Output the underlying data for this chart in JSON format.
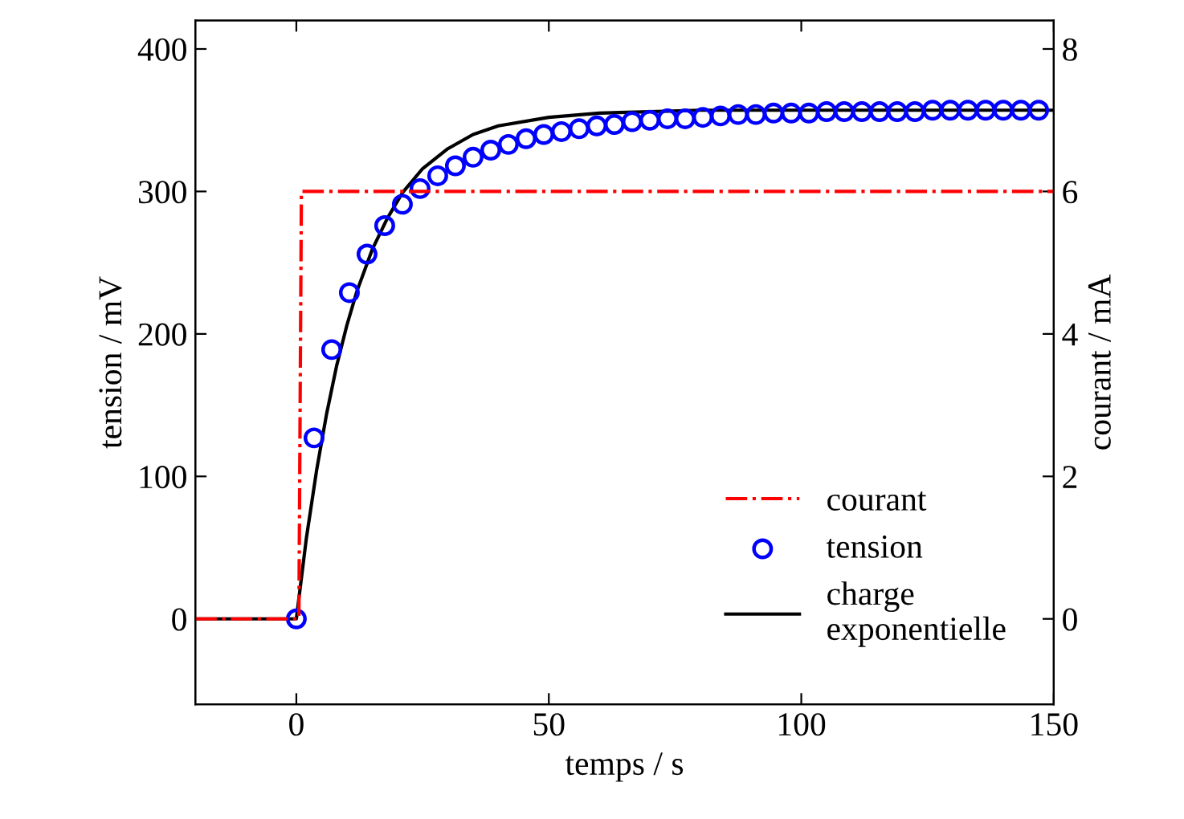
{
  "chart_data": {
    "type": "line",
    "xlabel": "temps / s",
    "ylabel": "tension / mV",
    "y2label": "courant / mA",
    "xlim": [
      -20,
      150
    ],
    "xticks": [
      0,
      50,
      100,
      150
    ],
    "ylim": [
      -60,
      420
    ],
    "yticks": [
      0,
      100,
      200,
      300,
      400
    ],
    "y2lim": [
      -1.2,
      8.4
    ],
    "y2ticks": [
      0,
      2,
      4,
      6,
      8
    ],
    "grid": false,
    "legend": "bottom right",
    "series": [
      {
        "name": "courant",
        "color": "#ff0000",
        "axis": "y2",
        "line_style": "dashdot",
        "marker": "none",
        "x": [
          -20,
          0.5,
          1,
          150
        ],
        "values": [
          0,
          0,
          6,
          6
        ]
      },
      {
        "name": "tension",
        "color": "#0000ff",
        "type": "scatter",
        "marker": "circle",
        "x": [
          0,
          3.5,
          7,
          10.5,
          14,
          17.5,
          21,
          24.5,
          28,
          31.5,
          35,
          38.5,
          42,
          45.5,
          49,
          52.5,
          56,
          59.5,
          63,
          66.5,
          70,
          73.5,
          77,
          80.5,
          84,
          87.5,
          91,
          94.5,
          98,
          101.5,
          105,
          108.5,
          112,
          115.5,
          119,
          122.5,
          126,
          129.5,
          133,
          136.5,
          140,
          143.5,
          147
        ],
        "values": [
          0,
          127,
          189,
          229,
          256,
          276,
          291,
          302,
          311,
          318,
          324,
          329,
          333,
          337,
          340,
          342,
          344,
          346,
          347,
          349,
          350,
          351,
          351,
          352,
          353,
          354,
          354,
          355,
          355,
          355,
          356,
          356,
          356,
          356,
          356,
          356,
          357,
          357,
          357,
          357,
          357,
          357,
          357
        ]
      },
      {
        "name": "charge\nexponentielle",
        "color": "#000000",
        "line_style": "solid",
        "marker": "none",
        "x": [
          -20,
          0,
          2,
          4,
          6,
          8,
          10,
          12,
          15,
          18,
          21,
          25,
          30,
          35,
          40,
          50,
          60,
          70,
          80,
          100,
          150
        ],
        "values": [
          0,
          0,
          57,
          104,
          144,
          178,
          206,
          230,
          259,
          281,
          299,
          316,
          330,
          340,
          346,
          352,
          355,
          356,
          357,
          357,
          357
        ]
      }
    ]
  }
}
